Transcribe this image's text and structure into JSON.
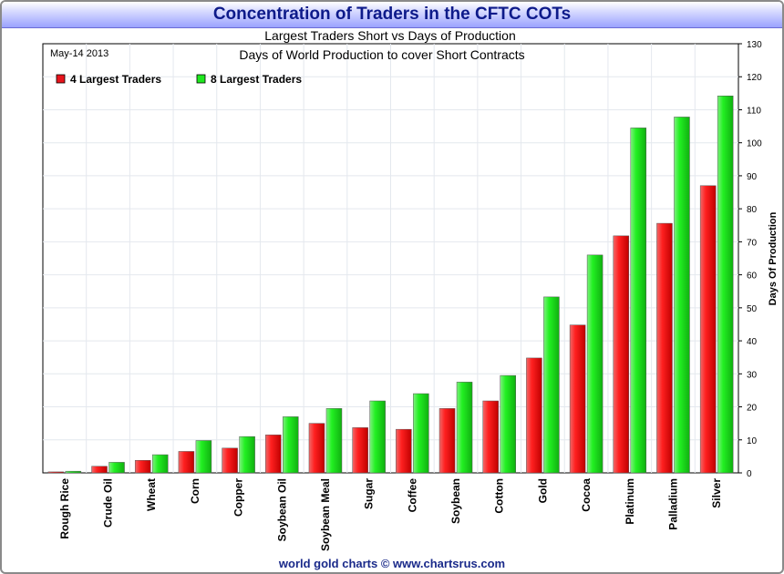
{
  "window_title": "Concentration of Traders in the CFTC COTs",
  "footer_text": "world gold charts © www.chartsrus.com",
  "chart_data": {
    "type": "bar",
    "title": "Largest Traders Short vs Days of Production",
    "subtitle": "Days of World Production to cover Short Contracts",
    "date_label": "May-14  2013",
    "xlabel": "",
    "ylabel": "Days Of Production",
    "ylim": [
      0,
      130
    ],
    "yticks": [
      0,
      10,
      20,
      30,
      40,
      50,
      60,
      70,
      80,
      90,
      100,
      110,
      120,
      130
    ],
    "y_axis_side": "right",
    "grid": true,
    "legend_position": "top-left",
    "categories": [
      "Rough Rice",
      "Crude Oil",
      "Wheat",
      "Corn",
      "Copper",
      "Soybean Oil",
      "Soybean Meal",
      "Sugar",
      "Coffee",
      "Soybean",
      "Cotton",
      "Gold",
      "Cocoa",
      "Platinum",
      "Palladium",
      "Silver"
    ],
    "series": [
      {
        "name": "4 Largest Traders",
        "color": "#e8141c",
        "values": [
          0.3,
          2.0,
          3.8,
          6.5,
          7.5,
          11.5,
          15.0,
          13.7,
          13.2,
          19.5,
          21.8,
          34.8,
          44.8,
          71.8,
          75.6,
          87.0
        ]
      },
      {
        "name": "8 Largest Traders",
        "color": "#1ee81e",
        "values": [
          0.5,
          3.2,
          5.5,
          9.8,
          11.0,
          17.0,
          19.5,
          21.8,
          24.0,
          27.5,
          29.5,
          53.3,
          66.0,
          104.5,
          107.8,
          114.2
        ]
      }
    ]
  }
}
